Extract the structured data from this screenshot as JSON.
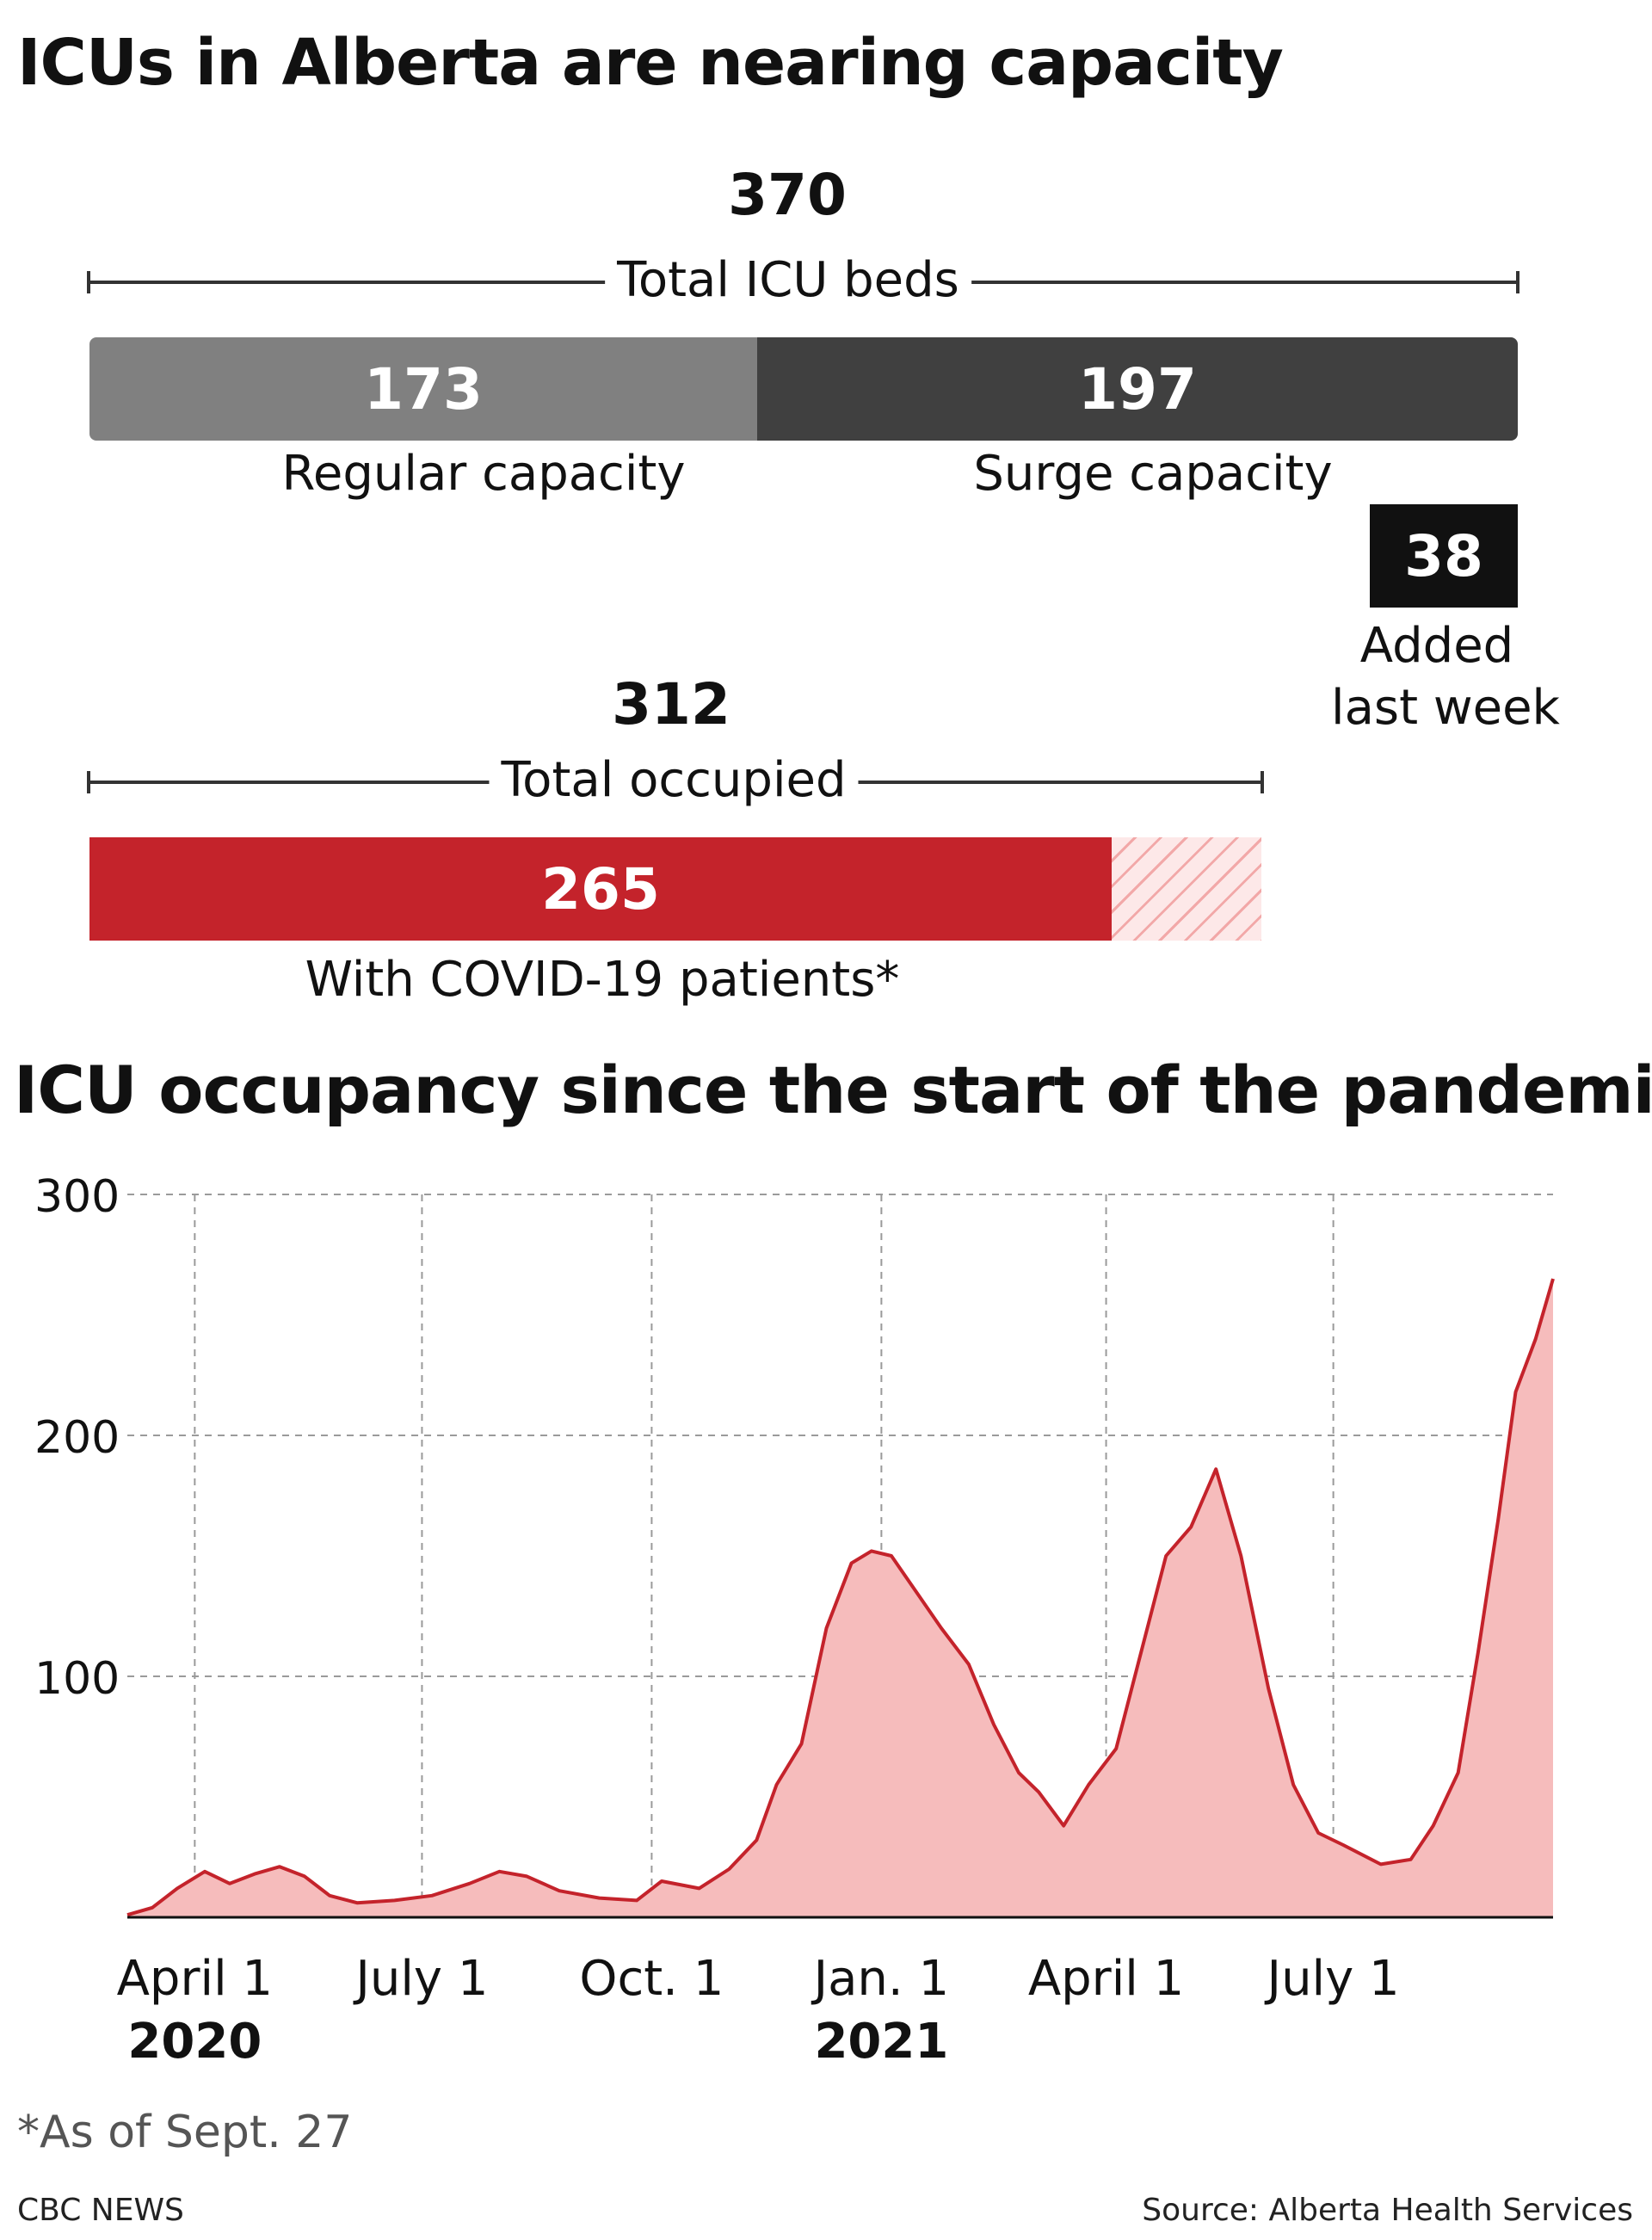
{
  "title": "ICUs in Alberta are nearing capacity",
  "capacity": {
    "total_value": "370",
    "total_label": "Total ICU beds",
    "regular_value": 173,
    "regular_label": "Regular capacity",
    "surge_value": 197,
    "surge_label": "Surge capacity",
    "added_value": "38",
    "added_label_line1": "Added",
    "added_label_line2": "last week",
    "occupied_total": "312",
    "occupied_label": "Total occupied",
    "covid_value": 265,
    "covid_label": "With COVID-19 patients*"
  },
  "colors": {
    "regular": "#808080",
    "surge": "#404040",
    "covid": "#c4232b",
    "hatch": "#fde8e8",
    "area_fill": "#f6bcbc",
    "line": "#c4232b"
  },
  "chart_title": "ICU occupancy since the start of the pandemic",
  "chart_data": {
    "type": "area",
    "title": "ICU occupancy since the start of the pandemic",
    "ylim": [
      0,
      300
    ],
    "y_ticks": [
      100,
      200,
      300
    ],
    "x_range": [
      "2020-03-05",
      "2021-09-27"
    ],
    "x_ticks": [
      {
        "date": "2020-04-01",
        "label": "April 1",
        "year": "2020"
      },
      {
        "date": "2020-07-01",
        "label": "July 1",
        "year": ""
      },
      {
        "date": "2020-10-01",
        "label": "Oct. 1",
        "year": ""
      },
      {
        "date": "2021-01-01",
        "label": "Jan. 1",
        "year": "2021"
      },
      {
        "date": "2021-04-01",
        "label": "April 1",
        "year": ""
      },
      {
        "date": "2021-07-01",
        "label": "July 1",
        "year": ""
      }
    ],
    "grid": true,
    "series": [
      {
        "values": [
          {
            "x": "2020-03-05",
            "y": 1
          },
          {
            "x": "2020-03-15",
            "y": 4
          },
          {
            "x": "2020-03-25",
            "y": 12
          },
          {
            "x": "2020-04-05",
            "y": 19
          },
          {
            "x": "2020-04-15",
            "y": 14
          },
          {
            "x": "2020-04-25",
            "y": 18
          },
          {
            "x": "2020-05-05",
            "y": 21
          },
          {
            "x": "2020-05-15",
            "y": 17
          },
          {
            "x": "2020-05-25",
            "y": 9
          },
          {
            "x": "2020-06-05",
            "y": 6
          },
          {
            "x": "2020-06-20",
            "y": 7
          },
          {
            "x": "2020-07-05",
            "y": 9
          },
          {
            "x": "2020-07-20",
            "y": 14
          },
          {
            "x": "2020-08-01",
            "y": 19
          },
          {
            "x": "2020-08-12",
            "y": 17
          },
          {
            "x": "2020-08-25",
            "y": 11
          },
          {
            "x": "2020-09-10",
            "y": 8
          },
          {
            "x": "2020-09-25",
            "y": 7
          },
          {
            "x": "2020-10-05",
            "y": 15
          },
          {
            "x": "2020-10-20",
            "y": 12
          },
          {
            "x": "2020-11-01",
            "y": 20
          },
          {
            "x": "2020-11-12",
            "y": 32
          },
          {
            "x": "2020-11-20",
            "y": 55
          },
          {
            "x": "2020-11-30",
            "y": 72
          },
          {
            "x": "2020-12-10",
            "y": 120
          },
          {
            "x": "2020-12-20",
            "y": 147
          },
          {
            "x": "2020-12-28",
            "y": 152
          },
          {
            "x": "2021-01-05",
            "y": 150
          },
          {
            "x": "2021-01-15",
            "y": 135
          },
          {
            "x": "2021-01-25",
            "y": 120
          },
          {
            "x": "2021-02-05",
            "y": 105
          },
          {
            "x": "2021-02-15",
            "y": 80
          },
          {
            "x": "2021-02-25",
            "y": 60
          },
          {
            "x": "2021-03-05",
            "y": 52
          },
          {
            "x": "2021-03-15",
            "y": 38
          },
          {
            "x": "2021-03-25",
            "y": 55
          },
          {
            "x": "2021-04-05",
            "y": 70
          },
          {
            "x": "2021-04-15",
            "y": 110
          },
          {
            "x": "2021-04-25",
            "y": 150
          },
          {
            "x": "2021-05-05",
            "y": 162
          },
          {
            "x": "2021-05-15",
            "y": 186
          },
          {
            "x": "2021-05-25",
            "y": 150
          },
          {
            "x": "2021-06-05",
            "y": 95
          },
          {
            "x": "2021-06-15",
            "y": 55
          },
          {
            "x": "2021-06-25",
            "y": 35
          },
          {
            "x": "2021-07-05",
            "y": 30
          },
          {
            "x": "2021-07-20",
            "y": 22
          },
          {
            "x": "2021-08-01",
            "y": 24
          },
          {
            "x": "2021-08-10",
            "y": 38
          },
          {
            "x": "2021-08-20",
            "y": 60
          },
          {
            "x": "2021-08-28",
            "y": 110
          },
          {
            "x": "2021-09-05",
            "y": 165
          },
          {
            "x": "2021-09-12",
            "y": 218
          },
          {
            "x": "2021-09-20",
            "y": 240
          },
          {
            "x": "2021-09-27",
            "y": 265
          }
        ]
      }
    ]
  },
  "footnote": "*As of Sept. 27",
  "credit_left": "CBC NEWS",
  "credit_right": "Source: Alberta Health Services"
}
